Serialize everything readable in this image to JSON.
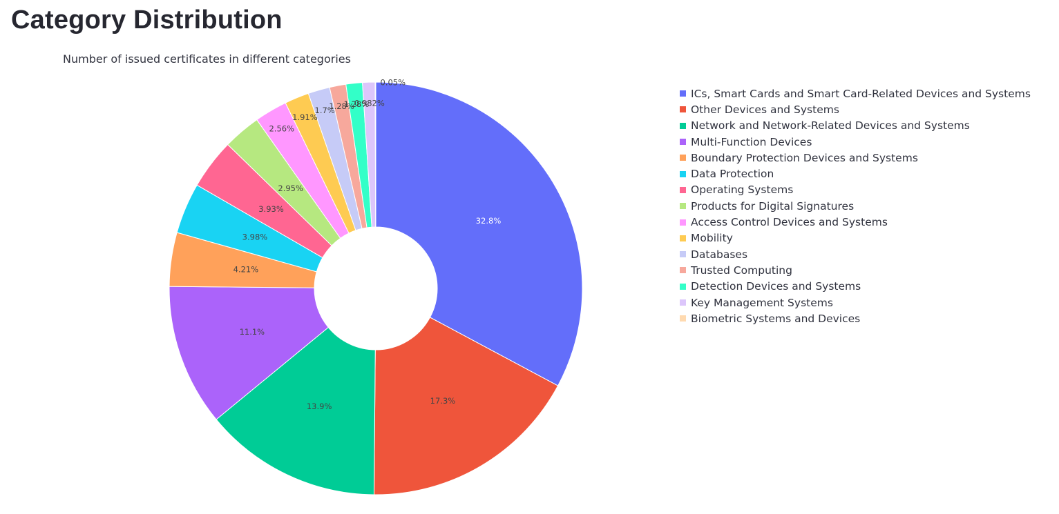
{
  "page": {
    "title": "Category Distribution"
  },
  "chart_data": {
    "type": "pie",
    "hole": true,
    "title": "Number of issued certificates in different categories",
    "legend_position": "right",
    "slices": [
      {
        "label": "ICs, Smart Cards and Smart Card-Related Devices and Systems",
        "percent": 32.8,
        "percent_text": "32.8%",
        "color": "#636efa"
      },
      {
        "label": "Other Devices and Systems",
        "percent": 17.3,
        "percent_text": "17.3%",
        "color": "#ef553b"
      },
      {
        "label": "Network and Network-Related Devices and Systems",
        "percent": 13.9,
        "percent_text": "13.9%",
        "color": "#00cc96"
      },
      {
        "label": "Multi-Function Devices",
        "percent": 11.1,
        "percent_text": "11.1%",
        "color": "#ab63fa"
      },
      {
        "label": "Boundary Protection Devices and Systems",
        "percent": 4.21,
        "percent_text": "4.21%",
        "color": "#ffa15a"
      },
      {
        "label": "Data Protection",
        "percent": 3.98,
        "percent_text": "3.98%",
        "color": "#19d3f3"
      },
      {
        "label": "Operating Systems",
        "percent": 3.93,
        "percent_text": "3.93%",
        "color": "#ff6692"
      },
      {
        "label": "Products for Digital Signatures",
        "percent": 2.95,
        "percent_text": "2.95%",
        "color": "#b6e880"
      },
      {
        "label": "Access Control Devices and Systems",
        "percent": 2.56,
        "percent_text": "2.56%",
        "color": "#ff97ff"
      },
      {
        "label": "Mobility",
        "percent": 1.91,
        "percent_text": "1.91%",
        "color": "#fecb52"
      },
      {
        "label": "Databases",
        "percent": 1.7,
        "percent_text": "1.7%",
        "color": "#c6cbf7"
      },
      {
        "label": "Trusted Computing",
        "percent": 1.28,
        "percent_text": "1.28%",
        "color": "#f7a89c"
      },
      {
        "label": "Detection Devices and Systems",
        "percent": 1.28,
        "percent_text": "1.28%",
        "color": "#33ffc8"
      },
      {
        "label": "Key Management Systems",
        "percent": 0.982,
        "percent_text": "0.982%",
        "color": "#dcc6fb"
      },
      {
        "label": "Biometric Systems and Devices",
        "percent": 0.05,
        "percent_text": "0.05%",
        "color": "#ffdab0"
      }
    ]
  }
}
